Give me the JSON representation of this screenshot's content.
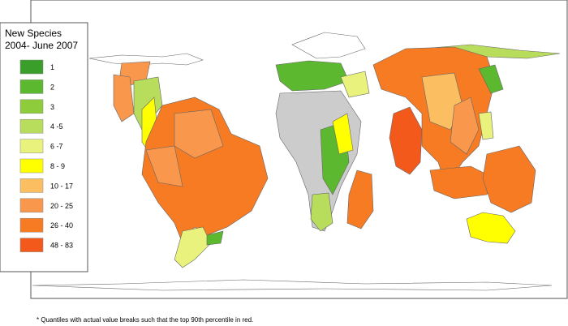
{
  "legend": {
    "title": [
      "New Species",
      "2004- June 2007"
    ],
    "items": [
      {
        "label": "1",
        "color": "#3a9e2a"
      },
      {
        "label": "2",
        "color": "#5cb82e"
      },
      {
        "label": "3",
        "color": "#8fcc3c"
      },
      {
        "label": "4 -5",
        "color": "#b8dc5c"
      },
      {
        "label": "6 -7",
        "color": "#e8f27c"
      },
      {
        "label": "8 - 9",
        "color": "#ffff00"
      },
      {
        "label": "10 - 17",
        "color": "#fbbf62"
      },
      {
        "label": "20 - 25",
        "color": "#f9984c"
      },
      {
        "label": "26 - 40",
        "color": "#f77b22"
      },
      {
        "label": "48 - 83",
        "color": "#f4591c"
      }
    ]
  },
  "footnote": "* Quantiles with actual value breaks such that the top 90th percentile in red."
}
